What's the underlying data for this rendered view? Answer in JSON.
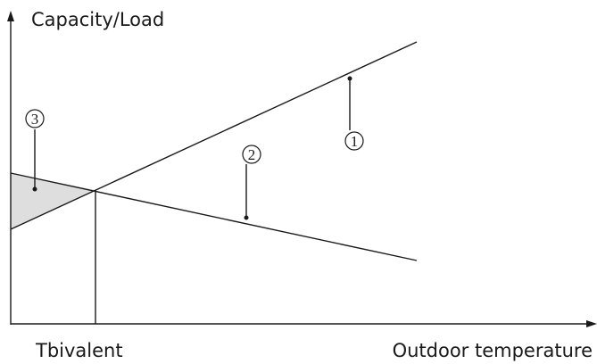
{
  "y_axis_label": "Capacity/Load",
  "x_axis_label": "Outdoor temperature",
  "bivalent_label": "Tbivalent",
  "markers": [
    "1",
    "2",
    "3"
  ]
}
